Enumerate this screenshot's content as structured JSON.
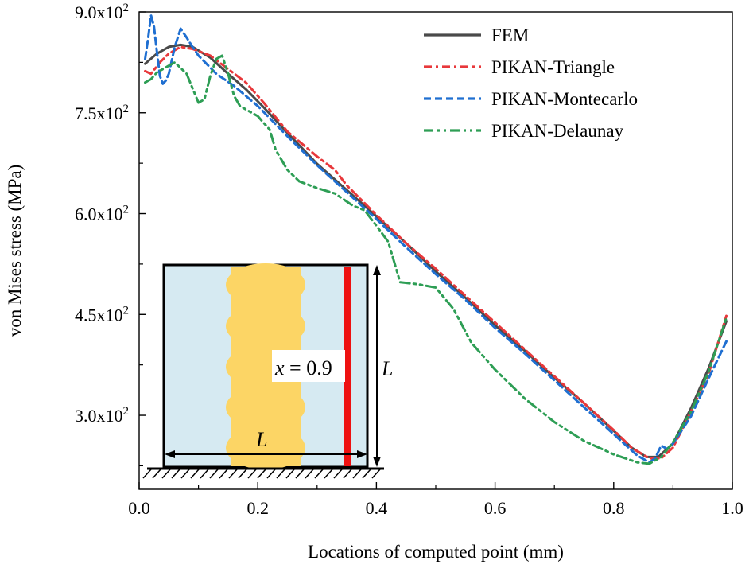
{
  "chart_data": {
    "type": "line",
    "title": "",
    "xlabel": "Locations of computed point (mm)",
    "ylabel": "von Mises stress (MPa)",
    "xlim": [
      0.0,
      1.0
    ],
    "ylim": [
      190,
      900
    ],
    "x_ticks": [
      0.0,
      0.2,
      0.4,
      0.6,
      0.8,
      1.0
    ],
    "x_tick_labels": [
      "0.0",
      "0.2",
      "0.4",
      "0.6",
      "0.8",
      "1.0"
    ],
    "y_ticks": [
      300,
      450,
      600,
      750,
      900
    ],
    "y_tick_labels": [
      {
        "mantissa": "3.0",
        "base": "x10",
        "exp": "2"
      },
      {
        "mantissa": "4.5",
        "base": "x10",
        "exp": "2"
      },
      {
        "mantissa": "6.0",
        "base": "x10",
        "exp": "2"
      },
      {
        "mantissa": "7.5",
        "base": "x10",
        "exp": "2"
      },
      {
        "mantissa": "9.0",
        "base": "x10",
        "exp": "2"
      }
    ],
    "legend_position": "top-right",
    "series": [
      {
        "name": "FEM",
        "color": "#4a4a4a",
        "dash": "solid",
        "x": [
          0.01,
          0.03,
          0.05,
          0.07,
          0.09,
          0.12,
          0.15,
          0.18,
          0.21,
          0.25,
          0.3,
          0.35,
          0.4,
          0.45,
          0.5,
          0.55,
          0.6,
          0.65,
          0.7,
          0.75,
          0.8,
          0.83,
          0.855,
          0.875,
          0.9,
          0.93,
          0.96,
          0.99
        ],
        "y": [
          823,
          838,
          848,
          851,
          848,
          832,
          808,
          785,
          758,
          720,
          674,
          635,
          596,
          556,
          514,
          475,
          434,
          396,
          356,
          318,
          277,
          252,
          238,
          238,
          258,
          310,
          370,
          440
        ]
      },
      {
        "name": "PIKAN-Triangle",
        "color": "#e8383b",
        "dash": "10,5,3,5",
        "x": [
          0.01,
          0.02,
          0.035,
          0.05,
          0.07,
          0.09,
          0.12,
          0.15,
          0.18,
          0.21,
          0.25,
          0.3,
          0.33,
          0.35,
          0.4,
          0.45,
          0.5,
          0.55,
          0.6,
          0.65,
          0.7,
          0.75,
          0.8,
          0.83,
          0.86,
          0.88,
          0.9,
          0.93,
          0.96,
          0.99
        ],
        "y": [
          812,
          808,
          825,
          838,
          848,
          845,
          835,
          815,
          795,
          765,
          722,
          685,
          665,
          642,
          598,
          556,
          518,
          478,
          438,
          398,
          358,
          318,
          278,
          252,
          236,
          236,
          252,
          305,
          362,
          448
        ]
      },
      {
        "name": "PIKAN-Montecarlo",
        "color": "#1f6fd1",
        "dash": "9,5",
        "x": [
          0.01,
          0.015,
          0.02,
          0.025,
          0.03,
          0.035,
          0.04,
          0.045,
          0.05,
          0.06,
          0.07,
          0.08,
          0.09,
          0.1,
          0.13,
          0.16,
          0.2,
          0.25,
          0.3,
          0.35,
          0.4,
          0.45,
          0.5,
          0.55,
          0.6,
          0.65,
          0.7,
          0.75,
          0.8,
          0.84,
          0.86,
          0.87,
          0.88,
          0.89,
          0.9,
          0.93,
          0.96,
          0.99
        ],
        "y": [
          830,
          860,
          895,
          878,
          840,
          805,
          793,
          798,
          808,
          848,
          875,
          862,
          848,
          835,
          808,
          790,
          760,
          715,
          672,
          632,
          592,
          550,
          510,
          472,
          430,
          392,
          352,
          312,
          272,
          240,
          230,
          236,
          255,
          250,
          258,
          298,
          355,
          410
        ]
      },
      {
        "name": "PIKAN-Delaunay",
        "color": "#2e9e55",
        "dash": "12,5,3,5,3,5",
        "x": [
          0.01,
          0.02,
          0.03,
          0.05,
          0.06,
          0.08,
          0.1,
          0.11,
          0.12,
          0.13,
          0.14,
          0.15,
          0.16,
          0.17,
          0.2,
          0.22,
          0.23,
          0.25,
          0.27,
          0.3,
          0.33,
          0.36,
          0.38,
          0.4,
          0.42,
          0.44,
          0.47,
          0.5,
          0.53,
          0.56,
          0.6,
          0.65,
          0.7,
          0.75,
          0.8,
          0.84,
          0.86,
          0.88,
          0.9,
          0.93,
          0.96,
          0.99
        ],
        "y": [
          795,
          800,
          810,
          820,
          825,
          808,
          765,
          770,
          805,
          830,
          835,
          808,
          775,
          760,
          745,
          725,
          695,
          665,
          648,
          638,
          630,
          612,
          605,
          582,
          558,
          498,
          495,
          490,
          458,
          408,
          368,
          325,
          290,
          262,
          242,
          230,
          228,
          238,
          260,
          305,
          365,
          445
        ]
      }
    ],
    "inset": {
      "x_label_var": "x",
      "x_label_rest": " = 0.9",
      "side_label_width": "L",
      "side_label_height": "L",
      "fill_color": "#d6eaf2",
      "particle_color": "#fcd565",
      "cut_line_color": "#ee1111"
    }
  }
}
